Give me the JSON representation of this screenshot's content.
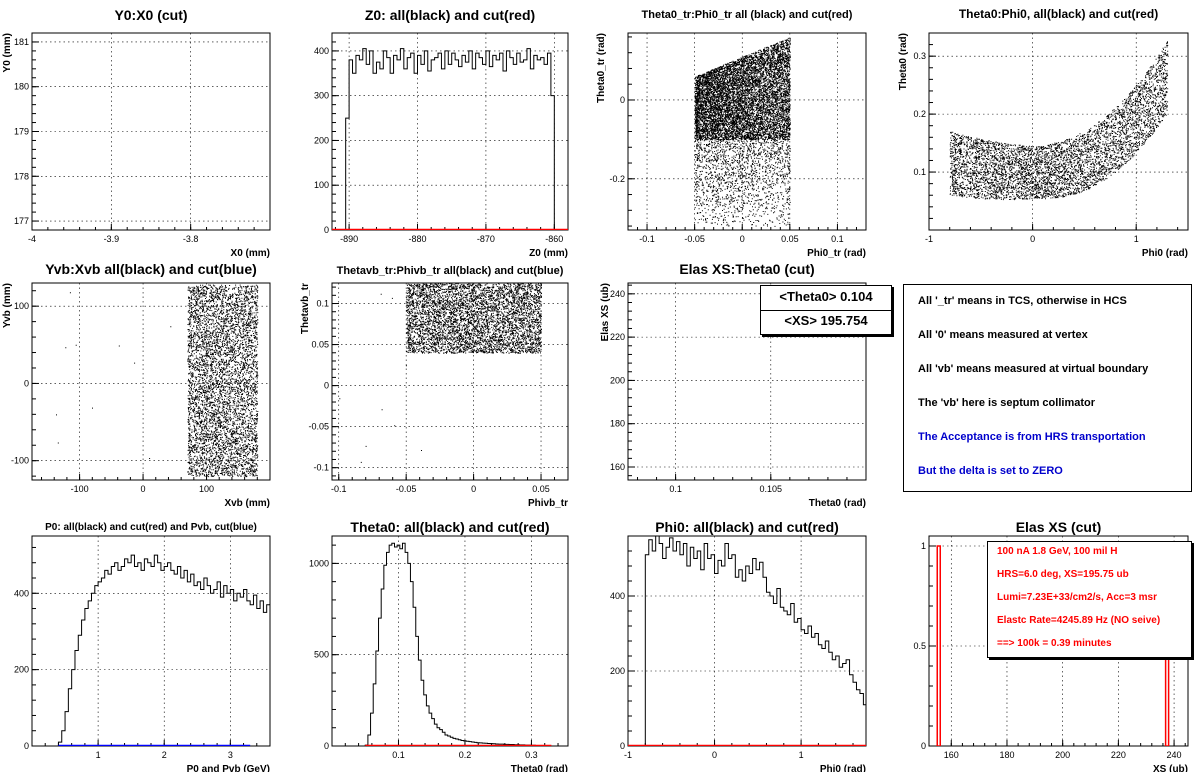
{
  "colors": {
    "black": "#000000",
    "red": "#ff0000",
    "blue": "#0000ff",
    "note_blue": "#0000cc"
  },
  "chart_data": [
    {
      "id": "y0x0",
      "type": "scatter",
      "title": "Y0:X0 (cut)",
      "xlabel": "X0 (mm)",
      "ylabel": "Y0 (mm)",
      "xlim": [
        -4,
        -3.7
      ],
      "ylim": [
        176.8,
        181.2
      ],
      "xticks": [
        -4,
        -3.9,
        -3.8,
        -3.7
      ],
      "xtick_labels": [
        "-4",
        "-3.9",
        "-3.8",
        ""
      ],
      "yticks": [
        177,
        178,
        179,
        180,
        181
      ],
      "ytick_labels": [
        "177",
        "178",
        "179",
        "180",
        "181"
      ],
      "grid": true,
      "points": []
    },
    {
      "id": "z0",
      "type": "line",
      "subtype": "histogram",
      "title": "Z0: all(black) and cut(red)",
      "xlabel": "Z0 (mm)",
      "ylabel": "",
      "xlim": [
        -892.5,
        -858
      ],
      "ylim": [
        0,
        440
      ],
      "xticks": [
        -890,
        -880,
        -870,
        -860
      ],
      "xtick_labels": [
        "-890",
        "-880",
        "-870",
        "-860"
      ],
      "yticks": [
        0,
        100,
        200,
        300,
        400
      ],
      "ytick_labels": [
        "0",
        "100",
        "200",
        "300",
        "400"
      ],
      "grid": true,
      "series": [
        {
          "color": "black",
          "x_start": -892.5,
          "bin_width": 0.5,
          "values": [
            0,
            0,
            0,
            0,
            250,
            380,
            350,
            390,
            380,
            405,
            370,
            400,
            350,
            375,
            360,
            400,
            385,
            350,
            390,
            380,
            405,
            360,
            385,
            395,
            350,
            390,
            370,
            400,
            355,
            380,
            385,
            395,
            360,
            400,
            370,
            395,
            380,
            365,
            390,
            375,
            400,
            360,
            395,
            385,
            370,
            400,
            365,
            390,
            380,
            395,
            355,
            400,
            385,
            370,
            395,
            375,
            380,
            405,
            360,
            390,
            380,
            385,
            370,
            395,
            300,
            0,
            0,
            0,
            0
          ]
        },
        {
          "color": "red",
          "x_start": -892.5,
          "bin_width": 34.5,
          "values": [
            0
          ]
        }
      ]
    },
    {
      "id": "theta0tr_phi0tr",
      "type": "scatter",
      "title": "Theta0_tr:Phi0_tr all (black) and cut(red)",
      "xlabel": "Phi0_tr (rad)",
      "ylabel": "Theta0_tr (rad)",
      "xlim": [
        -0.12,
        0.13
      ],
      "ylim": [
        -0.33,
        0.17
      ],
      "xticks": [
        -0.1,
        -0.05,
        0,
        0.05,
        0.1
      ],
      "xtick_labels": [
        "-0.1",
        "-0.05",
        "0",
        "0.05",
        "0.1"
      ],
      "yticks": [
        -0.2,
        0
      ],
      "ytick_labels": [
        "-0.2",
        "0"
      ],
      "grid": true,
      "dense_region": {
        "x": [
          -0.05,
          0.05
        ],
        "y_top_left": 0.06,
        "y_top_right": 0.16,
        "y_dense_bottom": -0.1,
        "y_sparse_bottom": -0.32
      }
    },
    {
      "id": "theta0_phi0",
      "type": "scatter",
      "title": "Theta0:Phi0, all(black) and cut(red)",
      "xlabel": "Phi0 (rad)",
      "ylabel": "Theta0 (rad)",
      "xlim": [
        -1,
        1.5
      ],
      "ylim": [
        0,
        0.34
      ],
      "xticks": [
        -1,
        0,
        1
      ],
      "xtick_labels": [
        "-1",
        "0",
        "1"
      ],
      "yticks": [
        0.1,
        0.2,
        0.3
      ],
      "ytick_labels": [
        "0.1",
        "0.2",
        "0.3"
      ],
      "grid": true,
      "band": {
        "x": [
          -0.8,
          1.3
        ],
        "center_min_y": 0.1,
        "half_width": 0.045,
        "right_top": 0.31
      }
    },
    {
      "id": "yvb_xvb",
      "type": "scatter",
      "title": "Yvb:Xvb all(black) and cut(blue)",
      "xlabel": "Xvb (mm)",
      "ylabel": "Yvb (mm)",
      "xlim": [
        -175,
        200
      ],
      "ylim": [
        -125,
        130
      ],
      "xticks": [
        -100,
        0,
        100
      ],
      "xtick_labels": [
        "-100",
        "0",
        "100"
      ],
      "yticks": [
        -100,
        0,
        100
      ],
      "ytick_labels": [
        "-100",
        "0",
        "100"
      ],
      "grid": true,
      "dense_region": {
        "x": [
          70,
          180
        ],
        "y": [
          -120,
          128
        ]
      }
    },
    {
      "id": "thetavb_phivb",
      "type": "scatter",
      "title": "Thetavb_tr:Phivb_tr all(black) and cut(blue)",
      "xlabel": "Phivb_tr",
      "ylabel": "Thetavb_tr",
      "xlim": [
        -0.105,
        0.07
      ],
      "ylim": [
        -0.115,
        0.125
      ],
      "xticks": [
        -0.1,
        -0.05,
        0,
        0.05
      ],
      "xtick_labels": [
        "-0.1",
        "-0.05",
        "0",
        "0.05"
      ],
      "yticks": [
        -0.1,
        -0.05,
        0,
        0.05,
        0.1
      ],
      "ytick_labels": [
        "-0.1",
        "-0.05",
        "0",
        "0.05",
        "0.1"
      ],
      "grid": true,
      "dense_region": {
        "x": [
          -0.05,
          0.05
        ],
        "y": [
          0.04,
          0.125
        ]
      }
    },
    {
      "id": "elasxs_theta0",
      "type": "scatter",
      "title": "Elas XS:Theta0 (cut)",
      "xlabel": "Theta0 (rad)",
      "ylabel": "Elas XS (ub)",
      "xlim": [
        0.0975,
        0.11
      ],
      "ylim": [
        154,
        245
      ],
      "xticks": [
        0.1,
        0.105
      ],
      "xtick_labels": [
        "0.1",
        "0.105"
      ],
      "yticks": [
        160,
        180,
        200,
        220,
        240
      ],
      "ytick_labels": [
        "160",
        "180",
        "200",
        "220",
        "240"
      ],
      "grid": true,
      "stats_box": [
        "<Theta0> 0.104",
        "<XS> 195.754"
      ]
    },
    {
      "id": "p0",
      "type": "line",
      "subtype": "histogram",
      "title": "P0: all(black) and cut(red) and Pvb, cut(blue)",
      "xlabel": "P0 and Pvb (GeV)",
      "ylabel": "",
      "xlim": [
        0,
        3.6
      ],
      "ylim": [
        0,
        550
      ],
      "xticks": [
        1,
        2,
        3
      ],
      "xtick_labels": [
        "1",
        "2",
        "3"
      ],
      "yticks": [
        0,
        200,
        400
      ],
      "ytick_labels": [
        "0",
        "200",
        "400"
      ],
      "grid": true,
      "series": [
        {
          "color": "black",
          "x_start": 0.4,
          "bin_width": 0.05,
          "values": [
            10,
            40,
            90,
            150,
            200,
            250,
            290,
            330,
            360,
            380,
            400,
            420,
            430,
            440,
            460,
            450,
            470,
            480,
            460,
            470,
            490,
            480,
            500,
            470,
            480,
            460,
            490,
            480,
            470,
            500,
            480,
            460,
            470,
            480,
            460,
            450,
            470,
            440,
            460,
            430,
            450,
            420,
            430,
            410,
            440,
            420,
            400,
            410,
            430,
            390,
            420,
            400,
            410,
            380,
            400,
            390,
            410,
            380,
            370,
            395,
            360,
            380,
            350,
            370,
            360,
            340,
            380,
            330,
            320,
            360,
            340,
            310,
            350,
            300,
            330,
            320,
            300,
            260,
            0
          ]
        },
        {
          "color": "blue",
          "x_start": 0.4,
          "bin_width": 2.9,
          "values": [
            0
          ]
        }
      ]
    },
    {
      "id": "theta0_hist",
      "type": "line",
      "subtype": "histogram",
      "title": "Theta0: all(black) and cut(red)",
      "xlabel": "Theta0 (rad)",
      "ylabel": "",
      "xlim": [
        0,
        0.355
      ],
      "ylim": [
        0,
        1150
      ],
      "xticks": [
        0.1,
        0.2,
        0.3
      ],
      "xtick_labels": [
        "0.1",
        "0.2",
        "0.3"
      ],
      "yticks": [
        0,
        500,
        1000
      ],
      "ytick_labels": [
        "0",
        "500",
        "1000"
      ],
      "grid": true,
      "series": [
        {
          "color": "black",
          "x_start": 0.05,
          "bin_width": 0.004,
          "values": [
            5,
            60,
            180,
            340,
            520,
            700,
            860,
            990,
            1060,
            1100,
            1110,
            1090,
            1100,
            1080,
            1110,
            1060,
            1000,
            900,
            760,
            600,
            470,
            360,
            280,
            220,
            180,
            150,
            120,
            100,
            90,
            75,
            60,
            55,
            48,
            42,
            38,
            34,
            30,
            28,
            26,
            24,
            22,
            20,
            18,
            17,
            16,
            15,
            14,
            13,
            12,
            11,
            10,
            10,
            9,
            9,
            8,
            8,
            7,
            7,
            6,
            6,
            5,
            5,
            4,
            4,
            3,
            3,
            2,
            2,
            1,
            0
          ]
        },
        {
          "color": "red",
          "x_start": 0.05,
          "bin_width": 0.28,
          "values": [
            0
          ]
        }
      ]
    },
    {
      "id": "phi0_hist",
      "type": "line",
      "subtype": "histogram",
      "title": "Phi0: all(black) and cut(red)",
      "xlabel": "Phi0 (rad)",
      "ylabel": "",
      "xlim": [
        -1,
        1.75
      ],
      "ylim": [
        0,
        560
      ],
      "xticks": [
        -1,
        0,
        1
      ],
      "xtick_labels": [
        "-1",
        "0",
        "1"
      ],
      "yticks": [
        0,
        200,
        400
      ],
      "ytick_labels": [
        "0",
        "200",
        "400"
      ],
      "grid": true,
      "series": [
        {
          "color": "black",
          "x_start": -0.8,
          "bin_width": 0.04,
          "values": [
            510,
            550,
            520,
            560,
            540,
            500,
            530,
            555,
            520,
            545,
            510,
            540,
            480,
            530,
            500,
            520,
            470,
            540,
            500,
            510,
            460,
            495,
            480,
            540,
            500,
            510,
            450,
            470,
            440,
            480,
            460,
            500,
            470,
            490,
            450,
            410,
            400,
            380,
            420,
            370,
            360,
            350,
            380,
            330,
            340,
            310,
            300,
            320,
            290,
            300,
            270,
            260,
            280,
            250,
            230,
            240,
            210,
            220,
            230,
            190,
            170,
            150,
            140,
            110,
            80,
            50,
            30,
            10,
            5,
            0
          ]
        },
        {
          "color": "red",
          "x_start": -1.0,
          "bin_width": 2.75,
          "values": [
            0
          ]
        }
      ]
    },
    {
      "id": "elasxs_hist",
      "type": "bar",
      "title": "Elas XS (cut)",
      "xlabel": "XS (ub)",
      "ylabel": "",
      "xlim": [
        152,
        245
      ],
      "ylim": [
        0,
        1.05
      ],
      "xticks": [
        160,
        180,
        200,
        220,
        240
      ],
      "xtick_labels": [
        "160",
        "180",
        "200",
        "220",
        "240"
      ],
      "yticks": [
        0,
        0.5,
        1
      ],
      "ytick_labels": [
        "0",
        "0.5",
        "1"
      ],
      "grid": true,
      "spikes": [
        {
          "x": 155.5,
          "value": 1,
          "color": "red"
        },
        {
          "x": 237.5,
          "value": 1,
          "color": "red"
        }
      ]
    }
  ],
  "notes": {
    "line1": "All '_tr' means in TCS, otherwise in HCS",
    "line2": "All '0' means measured at vertex",
    "line3": "All 'vb' means measured at virtual boundary",
    "line4": "The 'vb' here is septum collimator",
    "line5": "The Acceptance is from HRS transportation",
    "line6": "But the delta is set to ZERO"
  },
  "rate_box": {
    "line1": "100 nA 1.8 GeV, 100 mil H",
    "line2": "HRS=6.0 deg, XS=195.75 ub",
    "line3": "Lumi=7.23E+33/cm2/s, Acc=3 msr",
    "line4": "Elastc Rate=4245.89 Hz (NO seive)",
    "line5": "==> 100k = 0.39 minutes"
  }
}
